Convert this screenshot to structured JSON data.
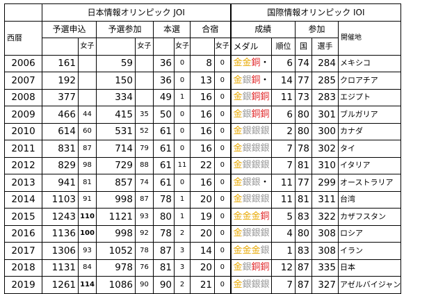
{
  "headers": {
    "year": "西暦",
    "joi_group": "日本情報オリンピック JOI",
    "ioi_group": "国際情報オリンピック IOI",
    "prelim_apply": "予選申込",
    "prelim_take": "予選参加",
    "final": "本選",
    "camp": "合宿",
    "girls": "女子",
    "result": "成績",
    "participation": "参加",
    "medal": "メダル",
    "rank": "順位",
    "countries": "国",
    "players": "選手",
    "host": "開催地"
  },
  "medal_colors": {
    "金": "#e8a800",
    "銀": "#9a9a9a",
    "銅": "#e0282a"
  },
  "rows": [
    {
      "year": "2006",
      "apply": "161",
      "apply_g": "",
      "take": "59",
      "take_g": "",
      "final": "36",
      "final_g": "0",
      "camp": "8",
      "camp_g": "0",
      "medals": [
        "金",
        "金",
        "銅",
        "・"
      ],
      "rank": "6",
      "countries": "74",
      "players": "284",
      "host": "メキシコ"
    },
    {
      "year": "2007",
      "apply": "192",
      "apply_g": "",
      "take": "150",
      "take_g": "",
      "final": "36",
      "final_g": "0",
      "camp": "13",
      "camp_g": "0",
      "medals": [
        "金",
        "銀",
        "銅",
        "・"
      ],
      "rank": "14",
      "countries": "77",
      "players": "285",
      "host": "クロアチア"
    },
    {
      "year": "2008",
      "apply": "377",
      "apply_g": "",
      "take": "334",
      "take_g": "",
      "final": "49",
      "final_g": "1",
      "camp": "16",
      "camp_g": "0",
      "medals": [
        "金",
        "銀",
        "銅",
        "銅"
      ],
      "rank": "11",
      "countries": "73",
      "players": "283",
      "host": "エジプト"
    },
    {
      "year": "2009",
      "apply": "466",
      "apply_g": "44",
      "take": "415",
      "take_g": "35",
      "final": "50",
      "final_g": "0",
      "camp": "16",
      "camp_g": "0",
      "medals": [
        "金",
        "銀",
        "銅",
        "銅"
      ],
      "rank": "6",
      "countries": "80",
      "players": "301",
      "host": "ブルガリア"
    },
    {
      "year": "2010",
      "apply": "614",
      "apply_g": "60",
      "take": "531",
      "take_g": "52",
      "final": "61",
      "final_g": "0",
      "camp": "16",
      "camp_g": "0",
      "medals": [
        "金",
        "銀",
        "銀",
        "銀"
      ],
      "rank": "2",
      "countries": "80",
      "players": "300",
      "host": "カナダ"
    },
    {
      "year": "2011",
      "apply": "831",
      "apply_g": "87",
      "take": "714",
      "take_g": "79",
      "final": "61",
      "final_g": "0",
      "camp": "16",
      "camp_g": "0",
      "medals": [
        "金",
        "銀",
        "銀",
        "銀"
      ],
      "rank": "7",
      "countries": "78",
      "players": "302",
      "host": "タイ"
    },
    {
      "year": "2012",
      "apply": "829",
      "apply_g": "98",
      "take": "729",
      "take_g": "88",
      "final": "61",
      "final_g": "11",
      "camp": "22",
      "camp_g": "0",
      "medals": [
        "金",
        "銀",
        "銀",
        "銀"
      ],
      "rank": "7",
      "countries": "81",
      "players": "310",
      "host": "イタリア"
    },
    {
      "year": "2013",
      "apply": "941",
      "apply_g": "81",
      "take": "857",
      "take_g": "74",
      "final": "61",
      "final_g": "0",
      "camp": "16",
      "camp_g": "0",
      "medals": [
        "金",
        "銀",
        "銀",
        "・"
      ],
      "rank": "11",
      "countries": "77",
      "players": "299",
      "host": "オーストラリア"
    },
    {
      "year": "2014",
      "apply": "1103",
      "apply_g": "91",
      "take": "998",
      "take_g": "87",
      "final": "78",
      "final_g": "1",
      "camp": "20",
      "camp_g": "0",
      "medals": [
        "金",
        "銀",
        "銀",
        "銀"
      ],
      "rank": "11",
      "countries": "81",
      "players": "311",
      "host": "台湾"
    },
    {
      "year": "2015",
      "apply": "1243",
      "apply_g": "110",
      "take": "1121",
      "take_g": "93",
      "final": "80",
      "final_g": "1",
      "camp": "19",
      "camp_g": "0",
      "medals": [
        "金",
        "金",
        "金",
        "銅"
      ],
      "rank": "5",
      "countries": "83",
      "players": "322",
      "host": "カザフスタン"
    },
    {
      "year": "2016",
      "apply": "1136",
      "apply_g": "100",
      "take": "998",
      "take_g": "92",
      "final": "78",
      "final_g": "2",
      "camp": "20",
      "camp_g": "0",
      "medals": [
        "金",
        "銀",
        "銀",
        "銀"
      ],
      "rank": "4",
      "countries": "80",
      "players": "308",
      "host": "ロシア"
    },
    {
      "year": "2017",
      "apply": "1306",
      "apply_g": "93",
      "take": "1052",
      "take_g": "78",
      "final": "87",
      "final_g": "3",
      "camp": "14",
      "camp_g": "0",
      "medals": [
        "金",
        "金",
        "金",
        "銀"
      ],
      "rank": "1",
      "countries": "83",
      "players": "308",
      "host": "イラン"
    },
    {
      "year": "2018",
      "apply": "1131",
      "apply_g": "84",
      "take": "978",
      "take_g": "76",
      "final": "81",
      "final_g": "3",
      "camp": "20",
      "camp_g": "0",
      "medals": [
        "金",
        "銀",
        "銅",
        "銅"
      ],
      "rank": "12",
      "countries": "87",
      "players": "335",
      "host": "日本"
    },
    {
      "year": "2019",
      "apply": "1261",
      "apply_g": "114",
      "take": "1086",
      "take_g": "90",
      "final": "90",
      "final_g": "2",
      "camp": "21",
      "camp_g": "0",
      "medals": [
        "金",
        "銀",
        "銀",
        "銀"
      ],
      "rank": "7",
      "countries": "87",
      "players": "327",
      "host": "アゼルバイジャン"
    }
  ]
}
